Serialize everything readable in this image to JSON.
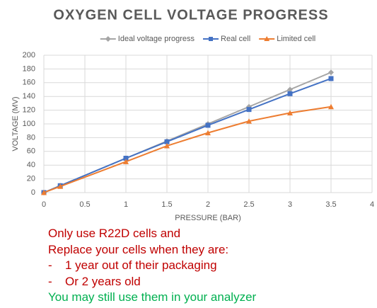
{
  "chart_data": {
    "type": "line",
    "title": "OXYGEN CELL VOLTAGE PROGRESS",
    "x": [
      0,
      0.2,
      1,
      1.5,
      2,
      2.5,
      3,
      3.5
    ],
    "series": [
      {
        "name": "Ideal voltage progress",
        "color": "#a5a5a5",
        "marker": "diamond",
        "values": [
          0,
          10,
          50,
          75,
          100,
          125,
          150,
          175
        ]
      },
      {
        "name": "Real cell",
        "color": "#4472c4",
        "marker": "square",
        "values": [
          0,
          10,
          50,
          74,
          98,
          121,
          144,
          166
        ]
      },
      {
        "name": "Limited cell",
        "color": "#ed7d31",
        "marker": "triangle",
        "values": [
          0,
          9,
          45,
          68,
          87,
          104,
          116,
          125
        ]
      }
    ],
    "xlim": [
      0,
      4
    ],
    "xticks": [
      0,
      0.5,
      1,
      1.5,
      2,
      2.5,
      3,
      3.5,
      4
    ],
    "ylim": [
      0,
      200
    ],
    "yticks": [
      0,
      20,
      40,
      60,
      80,
      100,
      120,
      140,
      160,
      180,
      200
    ],
    "xlabel": "PRESSURE (BAR)",
    "ylabel": "VOLTAGE (MV)",
    "grid": true,
    "legend": "top"
  },
  "notes": [
    {
      "text": "Only use R22D cells and",
      "color": "#c00000"
    },
    {
      "text": "Replace your cells when they are:",
      "color": "#c00000"
    },
    {
      "marker": "-",
      "text": "1 year out of their packaging",
      "color": "#c00000"
    },
    {
      "marker": "-",
      "text": "Or 2 years old",
      "color": "#c00000"
    },
    {
      "text": "You may still use them in your analyzer",
      "color": "#00b050"
    }
  ]
}
